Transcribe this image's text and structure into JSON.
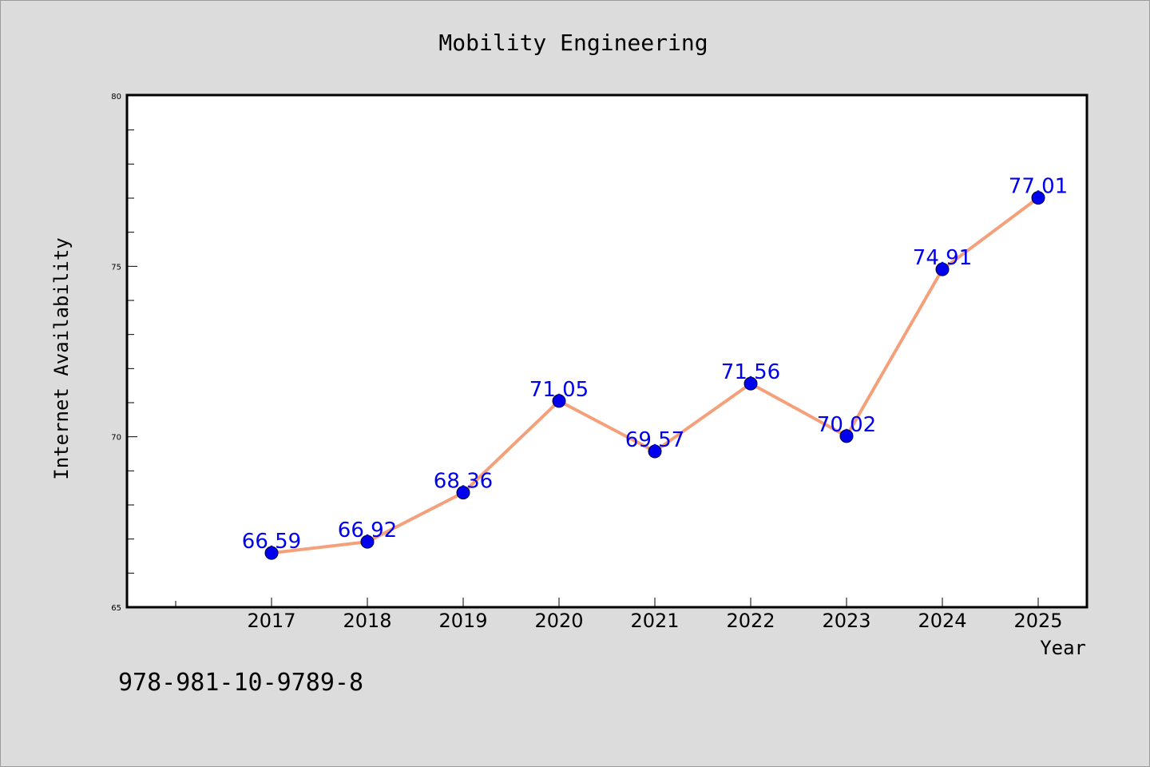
{
  "chart_data": {
    "type": "line",
    "title": "Mobility Engineering",
    "xlabel": "Year",
    "ylabel": "Internet Availability",
    "categories": [
      "2017",
      "2018",
      "2019",
      "2020",
      "2021",
      "2022",
      "2023",
      "2024",
      "2025"
    ],
    "series": [
      {
        "values": [
          66.59,
          66.92,
          68.36,
          71.05,
          69.57,
          71.56,
          70.02,
          74.91,
          77.01
        ],
        "labels": [
          "66.59",
          "66.92",
          "68.36",
          "71.05",
          "69.57",
          "71.56",
          "70.02",
          "74.91",
          "77.01"
        ],
        "line_color": "#f4a07a",
        "marker_color": "#0000ee"
      }
    ],
    "ylim": [
      65,
      80
    ],
    "y_ticks": [
      "65",
      "70",
      "75",
      "80"
    ],
    "grid": false,
    "legend": "none"
  },
  "footnote": "978-981-10-9789-8",
  "colors": {
    "background": "#dcdcdc",
    "plot_background": "#ffffff",
    "line": "#f4a07a",
    "marker": "#0000ee",
    "data_label": "#0000ee"
  }
}
